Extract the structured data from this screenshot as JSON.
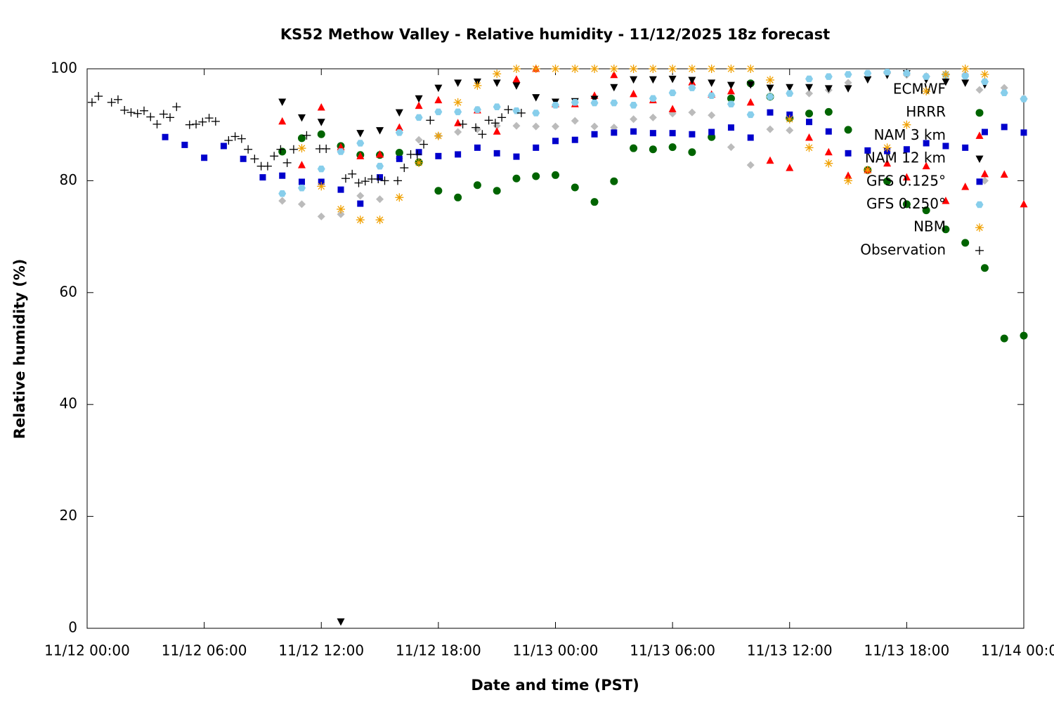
{
  "chart_data": {
    "type": "scatter",
    "title": "KS52 Methow Valley - Relative humidity - 11/12/2025 18z forecast",
    "xlabel": "Date and time (PST)",
    "ylabel": "Relative humidity (%)",
    "xlim": [
      "11/12 00:00",
      "11/14 00:00"
    ],
    "xticks": [
      "11/12 00:00",
      "11/12 06:00",
      "11/12 12:00",
      "11/12 18:00",
      "11/13 00:00",
      "11/13 06:00",
      "11/13 12:00",
      "11/13 18:00",
      "11/14 00:00"
    ],
    "ylim": [
      0,
      100
    ],
    "yticks": [
      0,
      20,
      40,
      60,
      80,
      100
    ],
    "grid": false,
    "legend": "upper right",
    "x": [
      "11/12 04:00",
      "11/12 05:00",
      "11/12 06:00",
      "11/12 07:00",
      "11/12 08:00",
      "11/12 09:00",
      "11/12 10:00",
      "11/12 11:00",
      "11/12 12:00",
      "11/12 13:00",
      "11/12 14:00",
      "11/12 15:00",
      "11/12 16:00",
      "11/12 17:00",
      "11/12 18:00",
      "11/12 19:00",
      "11/12 20:00",
      "11/12 21:00",
      "11/12 22:00",
      "11/12 23:00",
      "11/13 00:00",
      "11/13 01:00",
      "11/13 02:00",
      "11/13 03:00",
      "11/13 04:00",
      "11/13 05:00",
      "11/13 06:00",
      "11/13 07:00",
      "11/13 08:00",
      "11/13 09:00",
      "11/13 10:00",
      "11/13 11:00",
      "11/13 12:00",
      "11/13 13:00",
      "11/13 14:00",
      "11/13 15:00",
      "11/13 16:00",
      "11/13 17:00",
      "11/13 18:00",
      "11/13 19:00",
      "11/13 20:00",
      "11/13 21:00",
      "11/13 22:00",
      "11/13 23:00",
      "11/14 00:00"
    ],
    "series": [
      {
        "name": "ECMWF",
        "color": "#bbbbbb",
        "marker": "diamond",
        "values": [
          null,
          null,
          null,
          null,
          null,
          null,
          76.4,
          75.8,
          73.6,
          74,
          77.3,
          76.7,
          84,
          87.3,
          88,
          88.7,
          89.2,
          89.8,
          89.8,
          89.7,
          89.7,
          90.7,
          89.7,
          89.5,
          91,
          91.3,
          92,
          92.2,
          91.7,
          86,
          82.8,
          89.2,
          89,
          95.6,
          96.2,
          97.5,
          98.5,
          99.2,
          98.9,
          98.7,
          99.1,
          99,
          80,
          96.6,
          94.7
        ]
      },
      {
        "name": "HRRR",
        "color": "#006400",
        "marker": "circle",
        "values": [
          null,
          null,
          null,
          null,
          null,
          null,
          85.2,
          87.6,
          88.3,
          86.2,
          84.6,
          84.6,
          85,
          83.3,
          78.2,
          77,
          79.2,
          78.2,
          80.4,
          80.8,
          81,
          78.8,
          76.2,
          79.9,
          85.8,
          85.6,
          86,
          85.1,
          87.8,
          94.7,
          97.4,
          95,
          91.2,
          92,
          92.3,
          89.1,
          81.9,
          79.9,
          75.8,
          74.7,
          71.3,
          68.9,
          64.4,
          51.8,
          52.3
        ]
      },
      {
        "name": "NAM 3 km",
        "color": "#ff0000",
        "marker": "triangle-up",
        "values": [
          null,
          null,
          null,
          null,
          null,
          null,
          90.6,
          82.8,
          93.1,
          86,
          84.4,
          84.7,
          89.5,
          93.4,
          94.4,
          90.3,
          92.6,
          88.8,
          98.1,
          100,
          93.7,
          93.7,
          95.2,
          98.9,
          95.5,
          94.4,
          92.8,
          97.6,
          95.4,
          96,
          94,
          83.6,
          82.3,
          87.7,
          85.1,
          80.9,
          81.9,
          83.1,
          80.6,
          82.6,
          76.4,
          78.9,
          81.2,
          81.1,
          75.8
        ]
      },
      {
        "name": "NAM 12 km",
        "color": "#000000",
        "marker": "triangle-down",
        "values": [
          null,
          null,
          null,
          null,
          null,
          null,
          94.1,
          91.3,
          90.5,
          1.2,
          88.5,
          89,
          92.2,
          94.7,
          96.6,
          97.5,
          97.7,
          97.5,
          97,
          94.9,
          94.1,
          94.2,
          94.6,
          96.7,
          98.1,
          98.1,
          98.2,
          98,
          97.5,
          97.1,
          97.2,
          96.6,
          96.7,
          96.7,
          96.5,
          96.5,
          98.1,
          98.9,
          99.2,
          98.1,
          97.7,
          97.5,
          97.2,
          null,
          null
        ]
      },
      {
        "name": "GFS 0.125°",
        "color": "#0000cc",
        "marker": "square",
        "values": [
          87.8,
          86.4,
          84.1,
          86.2,
          83.9,
          80.6,
          80.9,
          79.8,
          79.8,
          78.4,
          75.9,
          80.6,
          83.9,
          85.1,
          84.4,
          84.7,
          85.9,
          84.9,
          84.3,
          85.9,
          87.1,
          87.3,
          88.3,
          88.6,
          88.8,
          88.5,
          88.5,
          88.3,
          88.7,
          89.5,
          87.7,
          92.2,
          91.8,
          90.5,
          88.8,
          84.9,
          85.4,
          85.3,
          85.6,
          86.7,
          86.2,
          85.9,
          88.7,
          89.6,
          88.6
        ]
      },
      {
        "name": "GFS 0.250°",
        "color": "#87ceeb",
        "marker": "hexagon",
        "values": [
          null,
          null,
          null,
          null,
          null,
          null,
          77.7,
          78.7,
          82.1,
          85.2,
          86.7,
          82.6,
          88.6,
          91.3,
          92.3,
          92.3,
          92.7,
          93.2,
          92.5,
          92.1,
          93.5,
          94,
          93.9,
          93.9,
          93.5,
          94.7,
          95.7,
          96.6,
          95.2,
          93.7,
          91.8,
          95,
          95.6,
          98.2,
          98.6,
          99,
          99.2,
          99.4,
          99.2,
          98.6,
          98.9,
          98.7,
          97.7,
          95.7,
          94.6
        ]
      },
      {
        "name": "NBM",
        "color": "#f0a000",
        "marker": "asterisk",
        "values": [
          null,
          null,
          null,
          null,
          null,
          null,
          null,
          85.8,
          79,
          74.9,
          73,
          73,
          77,
          83.2,
          88,
          94,
          97,
          99.1,
          100,
          100,
          100,
          100,
          100,
          100,
          100,
          100,
          100,
          100,
          100,
          100,
          100,
          98,
          91,
          85.9,
          83.1,
          80,
          81.9,
          85.9,
          90,
          96,
          99,
          100,
          99,
          null,
          null
        ]
      },
      {
        "name": "Observation",
        "color": "#000000",
        "marker": "plus",
        "x": [
          "11/12 00:15",
          "11/12 00:35",
          "11/12 01:15",
          "11/12 01:35",
          "11/12 01:55",
          "11/12 02:15",
          "11/12 02:35",
          "11/12 02:55",
          "11/12 03:15",
          "11/12 03:35",
          "11/12 03:55",
          "11/12 04:15",
          "11/12 04:35",
          "11/12 05:15",
          "11/12 05:35",
          "11/12 05:55",
          "11/12 06:15",
          "11/12 06:35",
          "11/12 07:15",
          "11/12 07:35",
          "11/12 07:55",
          "11/12 08:15",
          "11/12 08:35",
          "11/12 08:55",
          "11/12 09:15",
          "11/12 09:35",
          "11/12 09:55",
          "11/12 10:15",
          "11/12 10:35",
          "11/12 11:15",
          "11/12 11:55",
          "11/12 12:15",
          "11/12 13:15",
          "11/12 13:35",
          "11/12 13:55",
          "11/12 14:15",
          "11/12 14:35",
          "11/12 14:55",
          "11/12 15:15",
          "11/12 15:55",
          "11/12 16:15",
          "11/12 16:35",
          "11/12 16:55",
          "11/12 17:15",
          "11/12 17:35",
          "11/12 19:15",
          "11/12 19:55",
          "11/12 20:15",
          "11/12 20:35",
          "11/12 20:55",
          "11/12 21:15",
          "11/12 21:35",
          "11/12 22:15"
        ],
        "values": [
          94,
          95.1,
          94,
          94.5,
          92.6,
          92.2,
          92,
          92.5,
          91.4,
          90.1,
          91.9,
          91.3,
          93.2,
          90,
          90.1,
          90.5,
          91.2,
          90.6,
          87.2,
          87.9,
          87.5,
          85.6,
          83.9,
          82.6,
          82.6,
          84.4,
          85.6,
          83.2,
          85.6,
          88.1,
          85.7,
          85.7,
          80.4,
          81.2,
          79.6,
          79.9,
          80.3,
          80.3,
          80,
          80,
          82.3,
          84.7,
          84.7,
          86.5,
          90.8,
          90.1,
          89.5,
          88.3,
          90.8,
          90.3,
          91.3,
          92.7,
          92.1
        ]
      }
    ]
  }
}
